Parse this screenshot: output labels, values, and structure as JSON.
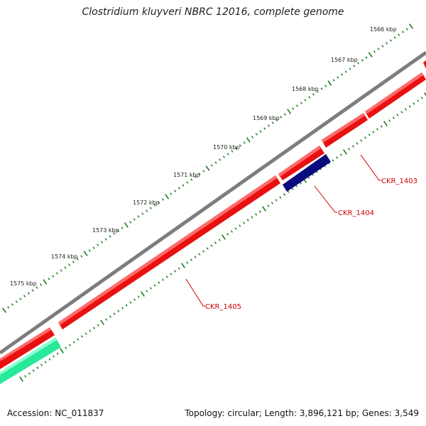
{
  "title": "Clostridium kluyveri NBRC 12016, complete genome",
  "footer": {
    "accession": "Accession: NC_011837",
    "summary": "Topology: circular; Length: 3,896,121 bp; Genes: 3,549"
  },
  "colors": {
    "backbone": "#808080",
    "gene_forward": "#ff1a1a",
    "gene_reverse_blue": "#0b0b80",
    "gene_reverse_teal": "#30f0a0",
    "label": "#cc0000",
    "tick": "#1a7a1a"
  },
  "scale": {
    "labels": [
      "1566 kbp",
      "1567 kbp",
      "1568 kbp",
      "1569 kbp",
      "1570 kbp",
      "1571 kbp",
      "1572 kbp",
      "1573 kbp",
      "1574 kbp",
      "1575 kbp"
    ]
  },
  "genes": [
    {
      "id": "CKR_1403",
      "label": "CKR_1403",
      "strand": "forward"
    },
    {
      "id": "CKR_1404",
      "label": "CKR_1404",
      "strand": "reverse"
    },
    {
      "id": "CKR_1405",
      "label": "CKR_1405",
      "strand": "forward"
    }
  ]
}
